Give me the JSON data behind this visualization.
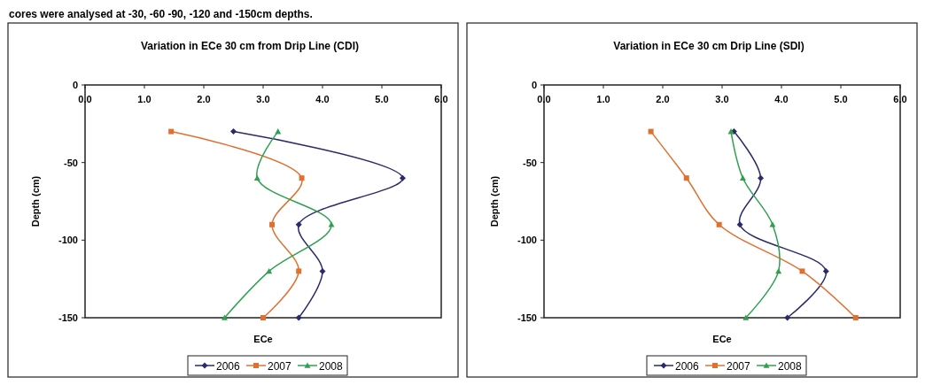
{
  "chart_data": [
    {
      "type": "line",
      "title": "Variation in ECe 30 cm from Drip Line (CDI)",
      "xlabel": "ECe",
      "ylabel": "Depth (cm)",
      "annotations": [
        "cores were analysed at -30, -60 -90, -120 and -150cm depths."
      ],
      "xlim": [
        0,
        6
      ],
      "ylim": [
        -150,
        0
      ],
      "xticks": [
        {
          "value": 0,
          "label": "0.0"
        },
        {
          "value": 1,
          "label": "1.0"
        },
        {
          "value": 2,
          "label": "2.0"
        },
        {
          "value": 3,
          "label": "3.0"
        },
        {
          "value": 4,
          "label": "4.0"
        },
        {
          "value": 5,
          "label": "5.0"
        },
        {
          "value": 6,
          "label": "6.0"
        }
      ],
      "yticks": [
        0,
        -50,
        -100,
        -150
      ],
      "legend": "bottom",
      "grid": false,
      "series": [
        {
          "name": "2006",
          "color": "#2b2b6b",
          "marker": "diamond",
          "x": [
            2.5,
            5.35,
            3.6,
            4.0,
            3.6
          ],
          "values": [
            -30,
            -60,
            -90,
            -120,
            -150
          ]
        },
        {
          "name": "2007",
          "color": "#e07030",
          "marker": "square",
          "x": [
            1.45,
            3.65,
            3.15,
            3.6,
            3.0
          ],
          "values": [
            -30,
            -60,
            -90,
            -120,
            -150
          ]
        },
        {
          "name": "2008",
          "color": "#30a050",
          "marker": "triangle",
          "x": [
            3.25,
            2.9,
            4.15,
            3.1,
            2.35
          ],
          "values": [
            -30,
            -60,
            -90,
            -120,
            -150
          ]
        }
      ]
    },
    {
      "type": "line",
      "title": "Variation in ECe 30 cm Drip Line (SDI)",
      "xlabel": "ECe",
      "ylabel": "Depth (cm)",
      "xlim": [
        0,
        6
      ],
      "ylim": [
        -150,
        0
      ],
      "xticks": [
        {
          "value": 0,
          "label": "0.0"
        },
        {
          "value": 1,
          "label": "1.0"
        },
        {
          "value": 2,
          "label": "2.0"
        },
        {
          "value": 3,
          "label": "3.0"
        },
        {
          "value": 4,
          "label": "4.0"
        },
        {
          "value": 5,
          "label": "5.0"
        },
        {
          "value": 6,
          "label": "6.0"
        }
      ],
      "yticks": [
        0,
        -50,
        -100,
        -150
      ],
      "legend": "bottom",
      "grid": false,
      "series": [
        {
          "name": "2006",
          "color": "#2b2b6b",
          "marker": "diamond",
          "x": [
            3.2,
            3.65,
            3.3,
            4.75,
            4.1
          ],
          "values": [
            -30,
            -60,
            -90,
            -120,
            -150
          ]
        },
        {
          "name": "2007",
          "color": "#e07030",
          "marker": "square",
          "x": [
            1.8,
            2.4,
            2.95,
            4.35,
            5.25
          ],
          "values": [
            -30,
            -60,
            -90,
            -120,
            -150
          ]
        },
        {
          "name": "2008",
          "color": "#30a050",
          "marker": "triangle",
          "x": [
            3.15,
            3.35,
            3.85,
            3.95,
            3.4
          ],
          "values": [
            -30,
            -60,
            -90,
            -120,
            -150
          ]
        }
      ]
    }
  ]
}
